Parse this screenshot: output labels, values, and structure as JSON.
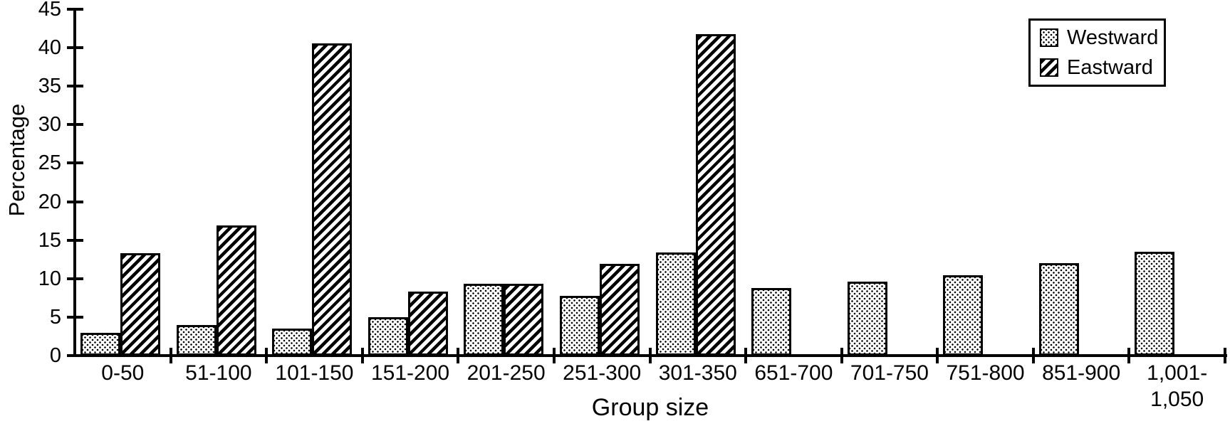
{
  "chart_data": {
    "type": "bar",
    "title": "",
    "xlabel": "Group size",
    "ylabel": "Percentage",
    "ylim": [
      0,
      45
    ],
    "ytick_step": 5,
    "ytick_labels": [
      "0",
      "5",
      "10",
      "15",
      "20",
      "25",
      "30",
      "35",
      "40",
      "45"
    ],
    "grid": false,
    "legend": {
      "position": "top-right",
      "entries": [
        "Westward",
        "Eastward"
      ]
    },
    "categories": [
      "0-50",
      "51-100",
      "101-150",
      "151-200",
      "201-250",
      "251-300",
      "301-350",
      "651-700",
      "701-750",
      "751-800",
      "851-900",
      "1,001-\n1,050"
    ],
    "series": [
      {
        "name": "Westward",
        "pattern": "dots",
        "values": [
          3.0,
          4.0,
          3.5,
          5.0,
          9.3,
          7.8,
          13.4,
          8.8,
          9.6,
          10.4,
          12.0,
          13.5
        ]
      },
      {
        "name": "Eastward",
        "pattern": "hatch",
        "values": [
          13.3,
          16.9,
          40.6,
          8.3,
          9.3,
          11.9,
          41.8,
          null,
          null,
          null,
          null,
          null
        ]
      }
    ],
    "colors": {
      "foreground": "#000000",
      "background": "#ffffff"
    }
  }
}
